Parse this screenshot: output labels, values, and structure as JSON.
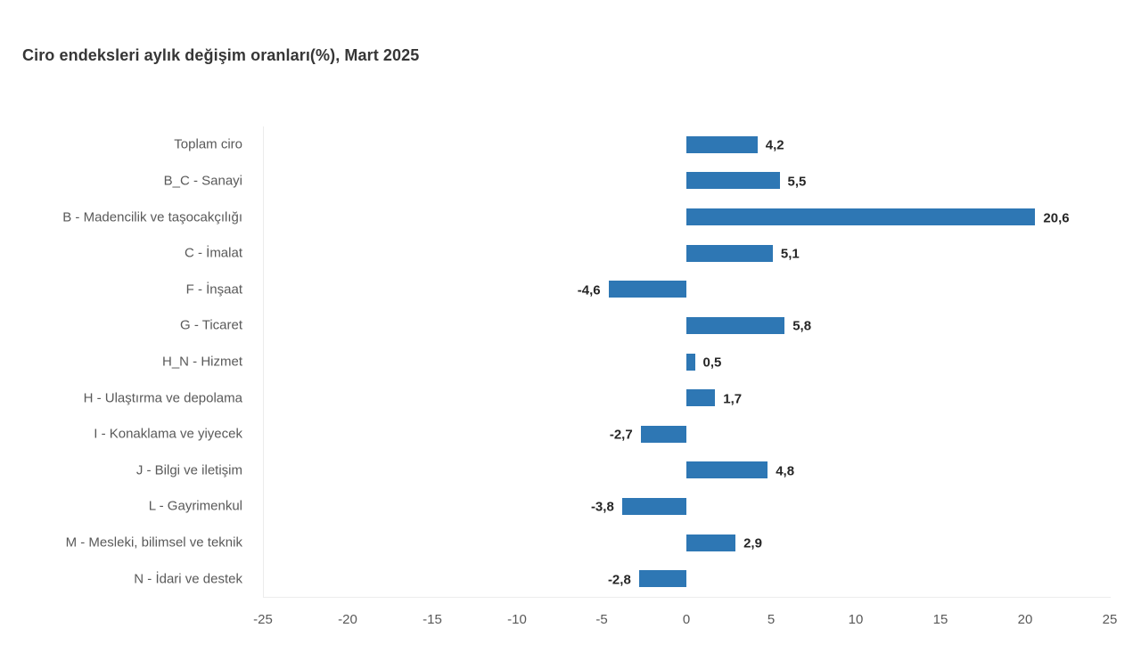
{
  "chart_data": {
    "type": "bar",
    "orientation": "horizontal",
    "title": "Ciro endeksleri aylık değişim oranları(%), Mart 2025",
    "categories": [
      "Toplam ciro",
      "B_C - Sanayi",
      "B - Madencilik ve taşocakçılığı",
      "C - İmalat",
      "F - İnşaat",
      "G - Ticaret",
      "H_N - Hizmet",
      "H - Ulaştırma ve depolama",
      "I - Konaklama ve yiyecek",
      "J - Bilgi ve iletişim",
      "L - Gayrimenkul",
      "M - Mesleki, bilimsel ve teknik",
      "N - İdari ve destek"
    ],
    "values": [
      4.2,
      5.5,
      20.6,
      5.1,
      -4.6,
      5.8,
      0.5,
      1.7,
      -2.7,
      4.8,
      -3.8,
      2.9,
      -2.8
    ],
    "value_labels": [
      "4,2",
      "5,5",
      "20,6",
      "5,1",
      "-4,6",
      "5,8",
      "0,5",
      "1,7",
      "-2,7",
      "4,8",
      "-3,8",
      "2,9",
      "-2,8"
    ],
    "xlim": [
      -25,
      25
    ],
    "x_ticks": [
      -25,
      -20,
      -15,
      -10,
      -5,
      0,
      5,
      10,
      15,
      20,
      25
    ],
    "x_tick_labels": [
      "-25",
      "-20",
      "-15",
      "-10",
      "-5",
      "0",
      "5",
      "10",
      "15",
      "20",
      "25"
    ],
    "bar_color": "#2e77b4",
    "grid": false,
    "legend": "none",
    "xlabel": "",
    "ylabel": ""
  }
}
